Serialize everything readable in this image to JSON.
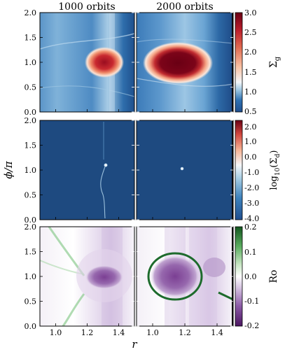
{
  "chart_data": {
    "type": "heatmap",
    "column_titles": [
      "1000 orbits",
      "2000 orbits"
    ],
    "xlabel": "r",
    "ylabel": "ϕ/π",
    "xlim": [
      0.9,
      1.5
    ],
    "ylim": [
      0.0,
      2.0
    ],
    "x_ticks": [
      1.0,
      1.2,
      1.4
    ],
    "x_tick_labels": [
      "1.0",
      "1.2",
      "1.4"
    ],
    "y_ticks": [
      0.0,
      0.5,
      1.0,
      1.5,
      2.0
    ],
    "y_tick_labels": [
      "0.0",
      "0.5",
      "1.0",
      "1.5",
      "2.0"
    ],
    "rows": [
      {
        "quantity": "Σg",
        "colorbar_label": "Σ_g",
        "colormap": "diverging blue-white-red",
        "clim": [
          0.5,
          3.0
        ],
        "colorbar_ticks": [
          0.5,
          1.0,
          1.5,
          2.0,
          2.5,
          3.0
        ],
        "colorbar_tick_labels": [
          "0.5",
          "1.0",
          "1.5",
          "2.0",
          "2.5",
          "3.0"
        ],
        "panels": [
          {
            "orbits": "1000 orbits",
            "vortex_center": [
              1.3,
              1.0
            ],
            "vortex_half_width": [
              0.05,
              0.15
            ],
            "background_value": 0.7,
            "vortex_peak": 3.0
          },
          {
            "orbits": "2000 orbits",
            "vortex_center": [
              1.2,
              1.0
            ],
            "vortex_half_width": [
              0.085,
              0.2
            ],
            "background_value": 0.7,
            "vortex_peak": 3.0
          }
        ]
      },
      {
        "quantity": "log10(Σd)",
        "colorbar_label": "log₁₀(Σ_d)",
        "colormap": "diverging blue-white-red",
        "clim": [
          -4.0,
          2.0
        ],
        "colorbar_ticks": [
          2.0,
          1.0,
          0.0,
          -1.0,
          -2.0,
          -3.0,
          -4.0
        ],
        "colorbar_tick_labels": [
          "2.0",
          "1.0",
          "0.0",
          "-1.0",
          "-2.0",
          "-3.0",
          "-4.0"
        ],
        "panels": [
          {
            "orbits": "1000 orbits",
            "dust_clump_center": [
              1.32,
              1.07
            ],
            "background_value": -4.0
          },
          {
            "orbits": "2000 orbits",
            "dust_clump_center": [
              1.2,
              1.02
            ],
            "background_value": -4.0
          }
        ]
      },
      {
        "quantity": "Ro",
        "colorbar_label": "Ro",
        "colormap": "diverging purple-white-green",
        "clim": [
          -0.2,
          0.2
        ],
        "colorbar_ticks": [
          0.2,
          0.1,
          0.0,
          -0.1,
          -0.2
        ],
        "colorbar_tick_labels": [
          "0.2",
          "0.1",
          "0.0",
          "-0.1",
          "-0.2"
        ],
        "panels": [
          {
            "orbits": "1000 orbits",
            "vortex_center": [
              1.3,
              1.0
            ],
            "vortex_value": -0.15
          },
          {
            "orbits": "2000 orbits",
            "vortex_center": [
              1.2,
              1.0
            ],
            "vortex_value": -0.15
          }
        ]
      }
    ]
  },
  "colors": {
    "density_low": "#1f4e8f",
    "density_mid": "#e6f0f8",
    "density_high": "#6a0014",
    "dust_background": "#1e4a80",
    "rossby_negative": "#6b2d7f",
    "rossby_positive": "#1d6b2c",
    "rossby_zero": "#ffffff"
  }
}
